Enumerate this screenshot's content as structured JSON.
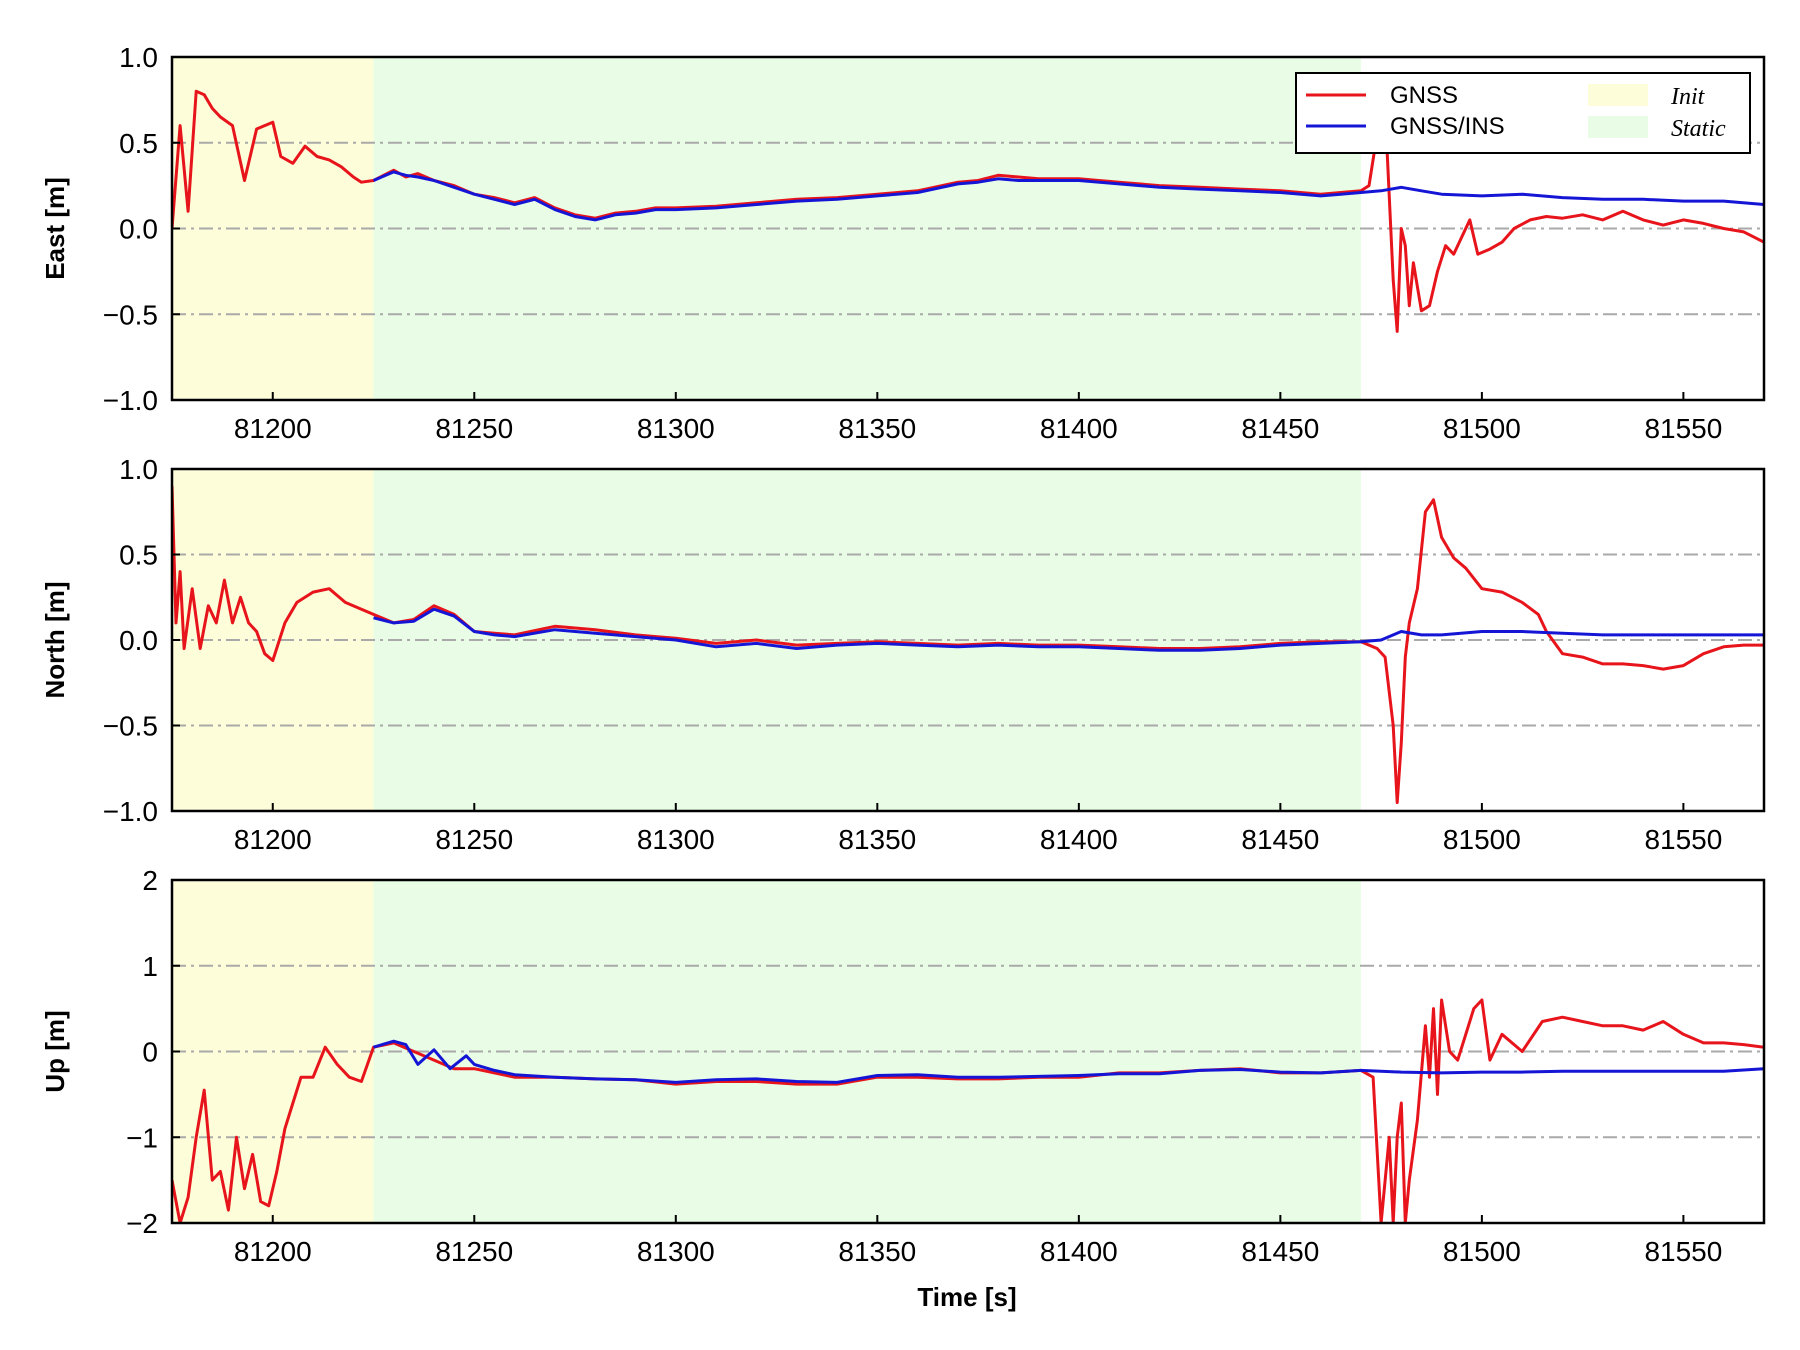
{
  "chart_data": {
    "type": "line",
    "xlabel": "Time [s]",
    "xlim": [
      81175,
      81570
    ],
    "xticks": [
      81200,
      81250,
      81300,
      81350,
      81400,
      81450,
      81500,
      81550
    ],
    "xtick_labels": [
      "81200",
      "81250",
      "81300",
      "81350",
      "81400",
      "81450",
      "81500",
      "81550"
    ],
    "grid": "horizontal dash-dot at major y ticks",
    "legend": {
      "placement": "top-right of first panel",
      "entries": [
        {
          "label": "GNSS",
          "kind": "line",
          "color": "#e8141b",
          "style": "normal"
        },
        {
          "label": "GNSS/INS",
          "kind": "line",
          "color": "#1515d6",
          "style": "normal"
        },
        {
          "label": "Init",
          "kind": "patch",
          "color": "#fdfdd9",
          "style": "italic"
        },
        {
          "label": "Static",
          "kind": "patch",
          "color": "#e9fde6",
          "style": "italic"
        }
      ]
    },
    "shaded_regions": [
      {
        "label": "Init",
        "x0": 81175,
        "x1": 81225,
        "color": "#fdfdd9"
      },
      {
        "label": "Static",
        "x0": 81225,
        "x1": 81470,
        "color": "#e9fde6"
      }
    ],
    "series_colors": {
      "GNSS": "#e8141b",
      "GNSS/INS": "#1515d6"
    },
    "panels": [
      {
        "id": "east",
        "ylabel": "East [m]",
        "ylim": [
          -1.0,
          1.0
        ],
        "yticks": [
          1.0,
          0.5,
          0.0,
          -0.5,
          -1.0
        ],
        "ytick_labels": [
          "1.0",
          "0.5",
          "0.0",
          "−0.5",
          "−1.0"
        ],
        "series": [
          {
            "name": "GNSS",
            "x": [
              81175,
              81177,
              81179,
              81181,
              81183,
              81185,
              81187,
              81190,
              81193,
              81196,
              81198,
              81200,
              81202,
              81205,
              81208,
              81211,
              81214,
              81217,
              81220,
              81222,
              81225,
              81230,
              81233,
              81236,
              81240,
              81245,
              81250,
              81255,
              81260,
              81265,
              81270,
              81275,
              81280,
              81285,
              81290,
              81295,
              81300,
              81310,
              81320,
              81330,
              81340,
              81350,
              81360,
              81370,
              81375,
              81380,
              81385,
              81390,
              81400,
              81410,
              81420,
              81430,
              81440,
              81450,
              81460,
              81465,
              81470,
              81472,
              81474,
              81476,
              81478,
              81479,
              81480,
              81481,
              81482,
              81483,
              81485,
              81487,
              81489,
              81491,
              81493,
              81495,
              81497,
              81499,
              81502,
              81505,
              81508,
              81512,
              81516,
              81520,
              81525,
              81530,
              81535,
              81540,
              81545,
              81550,
              81555,
              81560,
              81565,
              81570
            ],
            "y": [
              0.0,
              0.6,
              0.1,
              0.8,
              0.78,
              0.7,
              0.65,
              0.6,
              0.28,
              0.58,
              0.6,
              0.62,
              0.42,
              0.38,
              0.48,
              0.42,
              0.4,
              0.36,
              0.3,
              0.27,
              0.28,
              0.34,
              0.3,
              0.32,
              0.28,
              0.25,
              0.2,
              0.18,
              0.15,
              0.18,
              0.12,
              0.08,
              0.06,
              0.09,
              0.1,
              0.12,
              0.12,
              0.13,
              0.15,
              0.17,
              0.18,
              0.2,
              0.22,
              0.27,
              0.28,
              0.31,
              0.3,
              0.29,
              0.29,
              0.27,
              0.25,
              0.24,
              0.23,
              0.22,
              0.2,
              0.21,
              0.22,
              0.25,
              0.55,
              0.7,
              -0.3,
              -0.6,
              0.0,
              -0.1,
              -0.45,
              -0.2,
              -0.48,
              -0.45,
              -0.25,
              -0.1,
              -0.15,
              -0.05,
              0.05,
              -0.15,
              -0.12,
              -0.08,
              0.0,
              0.05,
              0.07,
              0.06,
              0.08,
              0.05,
              0.1,
              0.05,
              0.02,
              0.05,
              0.03,
              0.0,
              -0.02,
              -0.08
            ]
          },
          {
            "name": "GNSS/INS",
            "x": [
              81225,
              81230,
              81233,
              81236,
              81240,
              81245,
              81250,
              81255,
              81260,
              81265,
              81270,
              81275,
              81280,
              81285,
              81290,
              81295,
              81300,
              81310,
              81320,
              81330,
              81340,
              81350,
              81360,
              81370,
              81375,
              81380,
              81385,
              81390,
              81400,
              81410,
              81420,
              81430,
              81440,
              81450,
              81460,
              81465,
              81470,
              81475,
              81480,
              81485,
              81490,
              81500,
              81510,
              81520,
              81530,
              81540,
              81550,
              81560,
              81570
            ],
            "y": [
              0.28,
              0.33,
              0.31,
              0.3,
              0.28,
              0.24,
              0.2,
              0.17,
              0.14,
              0.17,
              0.11,
              0.07,
              0.05,
              0.08,
              0.09,
              0.11,
              0.11,
              0.12,
              0.14,
              0.16,
              0.17,
              0.19,
              0.21,
              0.26,
              0.27,
              0.29,
              0.28,
              0.28,
              0.28,
              0.26,
              0.24,
              0.23,
              0.22,
              0.21,
              0.19,
              0.2,
              0.21,
              0.22,
              0.24,
              0.22,
              0.2,
              0.19,
              0.2,
              0.18,
              0.17,
              0.17,
              0.16,
              0.16,
              0.14
            ]
          }
        ]
      },
      {
        "id": "north",
        "ylabel": "North [m]",
        "ylim": [
          -1.0,
          1.0
        ],
        "yticks": [
          1.0,
          0.5,
          0.0,
          -0.5,
          -1.0
        ],
        "ytick_labels": [
          "1.0",
          "0.5",
          "0.0",
          "−0.5",
          "−1.0"
        ],
        "series": [
          {
            "name": "GNSS",
            "x": [
              81175,
              81176,
              81177,
              81178,
              81180,
              81182,
              81184,
              81186,
              81188,
              81190,
              81192,
              81194,
              81196,
              81198,
              81200,
              81203,
              81206,
              81210,
              81214,
              81218,
              81222,
              81225,
              81230,
              81235,
              81240,
              81245,
              81250,
              81255,
              81260,
              81270,
              81280,
              81290,
              81300,
              81310,
              81320,
              81330,
              81340,
              81350,
              81360,
              81370,
              81380,
              81390,
              81400,
              81410,
              81420,
              81430,
              81440,
              81450,
              81460,
              81470,
              81474,
              81476,
              81478,
              81479,
              81480,
              81481,
              81482,
              81484,
              81486,
              81488,
              81490,
              81493,
              81496,
              81500,
              81505,
              81510,
              81514,
              81516,
              81520,
              81525,
              81530,
              81535,
              81540,
              81545,
              81550,
              81555,
              81560,
              81565,
              81570
            ],
            "y": [
              0.9,
              0.1,
              0.4,
              -0.05,
              0.3,
              -0.05,
              0.2,
              0.1,
              0.35,
              0.1,
              0.25,
              0.1,
              0.05,
              -0.08,
              -0.12,
              0.1,
              0.22,
              0.28,
              0.3,
              0.22,
              0.18,
              0.15,
              0.1,
              0.12,
              0.2,
              0.15,
              0.05,
              0.04,
              0.03,
              0.08,
              0.06,
              0.03,
              0.01,
              -0.02,
              0.0,
              -0.03,
              -0.02,
              -0.01,
              -0.02,
              -0.03,
              -0.02,
              -0.03,
              -0.03,
              -0.04,
              -0.05,
              -0.05,
              -0.04,
              -0.02,
              -0.01,
              -0.01,
              -0.05,
              -0.1,
              -0.5,
              -0.95,
              -0.6,
              -0.1,
              0.1,
              0.3,
              0.75,
              0.82,
              0.6,
              0.48,
              0.42,
              0.3,
              0.28,
              0.22,
              0.15,
              0.05,
              -0.08,
              -0.1,
              -0.14,
              -0.14,
              -0.15,
              -0.17,
              -0.15,
              -0.08,
              -0.04,
              -0.03,
              -0.03
            ]
          },
          {
            "name": "GNSS/INS",
            "x": [
              81225,
              81230,
              81235,
              81240,
              81245,
              81250,
              81255,
              81260,
              81270,
              81280,
              81290,
              81300,
              81310,
              81320,
              81330,
              81340,
              81350,
              81360,
              81370,
              81380,
              81390,
              81400,
              81410,
              81420,
              81430,
              81440,
              81450,
              81460,
              81470,
              81475,
              81480,
              81485,
              81490,
              81500,
              81510,
              81520,
              81530,
              81540,
              81550,
              81560,
              81570
            ],
            "y": [
              0.13,
              0.1,
              0.11,
              0.18,
              0.14,
              0.05,
              0.03,
              0.02,
              0.06,
              0.04,
              0.02,
              0.0,
              -0.04,
              -0.02,
              -0.05,
              -0.03,
              -0.02,
              -0.03,
              -0.04,
              -0.03,
              -0.04,
              -0.04,
              -0.05,
              -0.06,
              -0.06,
              -0.05,
              -0.03,
              -0.02,
              -0.01,
              0.0,
              0.05,
              0.03,
              0.03,
              0.05,
              0.05,
              0.04,
              0.03,
              0.03,
              0.03,
              0.03,
              0.03
            ]
          }
        ]
      },
      {
        "id": "up",
        "ylabel": "Up [m]",
        "ylim": [
          -2,
          2
        ],
        "yticks": [
          2,
          1,
          0,
          -1,
          -2
        ],
        "ytick_labels": [
          "2",
          "1",
          "0",
          "−1",
          "−2"
        ],
        "series": [
          {
            "name": "GNSS",
            "x": [
              81175,
              81177,
              81179,
              81181,
              81183,
              81185,
              81187,
              81189,
              81191,
              81193,
              81195,
              81197,
              81199,
              81201,
              81203,
              81205,
              81207,
              81210,
              81213,
              81216,
              81219,
              81222,
              81225,
              81230,
              81235,
              81240,
              81245,
              81250,
              81255,
              81260,
              81270,
              81280,
              81290,
              81300,
              81310,
              81320,
              81330,
              81340,
              81350,
              81360,
              81370,
              81380,
              81390,
              81400,
              81410,
              81420,
              81430,
              81440,
              81450,
              81460,
              81470,
              81473,
              81475,
              81477,
              81478,
              81479,
              81480,
              81481,
              81482,
              81484,
              81486,
              81487,
              81488,
              81489,
              81490,
              81492,
              81494,
              81496,
              81498,
              81500,
              81502,
              81505,
              81510,
              81515,
              81520,
              81525,
              81530,
              81535,
              81540,
              81545,
              81550,
              81555,
              81560,
              81565,
              81570
            ],
            "y": [
              -1.5,
              -2.0,
              -1.7,
              -1.0,
              -0.45,
              -1.5,
              -1.4,
              -1.85,
              -1.0,
              -1.6,
              -1.2,
              -1.75,
              -1.8,
              -1.4,
              -0.9,
              -0.6,
              -0.3,
              -0.3,
              0.05,
              -0.15,
              -0.3,
              -0.35,
              0.05,
              0.1,
              0.0,
              -0.1,
              -0.2,
              -0.2,
              -0.25,
              -0.3,
              -0.3,
              -0.32,
              -0.33,
              -0.38,
              -0.35,
              -0.35,
              -0.38,
              -0.38,
              -0.3,
              -0.3,
              -0.32,
              -0.32,
              -0.3,
              -0.3,
              -0.25,
              -0.25,
              -0.22,
              -0.2,
              -0.25,
              -0.25,
              -0.22,
              -0.3,
              -2.0,
              -1.0,
              -2.0,
              -1.0,
              -0.6,
              -2.0,
              -1.5,
              -0.8,
              0.3,
              -0.3,
              0.5,
              -0.5,
              0.6,
              0.0,
              -0.1,
              0.2,
              0.5,
              0.6,
              -0.1,
              0.2,
              0.0,
              0.35,
              0.4,
              0.35,
              0.3,
              0.3,
              0.25,
              0.35,
              0.2,
              0.1,
              0.1,
              0.08,
              0.05
            ]
          },
          {
            "name": "GNSS/INS",
            "x": [
              81225,
              81230,
              81233,
              81236,
              81240,
              81244,
              81248,
              81250,
              81255,
              81260,
              81270,
              81280,
              81290,
              81300,
              81310,
              81320,
              81330,
              81340,
              81350,
              81360,
              81370,
              81380,
              81390,
              81400,
              81410,
              81420,
              81430,
              81440,
              81450,
              81460,
              81470,
              81480,
              81490,
              81500,
              81510,
              81520,
              81530,
              81540,
              81550,
              81560,
              81570
            ],
            "y": [
              0.05,
              0.12,
              0.08,
              -0.15,
              0.02,
              -0.2,
              -0.05,
              -0.15,
              -0.22,
              -0.27,
              -0.3,
              -0.32,
              -0.33,
              -0.36,
              -0.33,
              -0.32,
              -0.35,
              -0.36,
              -0.28,
              -0.27,
              -0.3,
              -0.3,
              -0.29,
              -0.28,
              -0.26,
              -0.26,
              -0.22,
              -0.21,
              -0.24,
              -0.25,
              -0.22,
              -0.24,
              -0.25,
              -0.24,
              -0.24,
              -0.23,
              -0.23,
              -0.23,
              -0.23,
              -0.23,
              -0.2
            ]
          }
        ]
      }
    ]
  }
}
